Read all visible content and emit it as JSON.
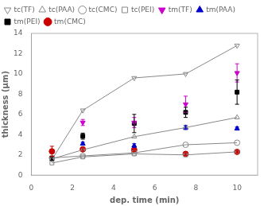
{
  "chart_data": {
    "type": "scatter",
    "title": "",
    "xlabel": "dep. time (min)",
    "ylabel": "thickness (μm)",
    "xlim": [
      0,
      11
    ],
    "ylim": [
      0,
      14
    ],
    "xticks": [
      0,
      2,
      4,
      6,
      8,
      10
    ],
    "yticks": [
      0,
      2,
      4,
      6,
      8,
      10,
      12,
      14
    ],
    "grid": false,
    "legend": "upper left",
    "series": [
      {
        "name": "tc(TF)",
        "color": "#888888",
        "marker": "triangle_down",
        "line_style": "solid",
        "x": [
          1,
          2.5,
          5,
          7.5,
          10
        ],
        "values": [
          1.55,
          6.4,
          9.6,
          10.0,
          12.8
        ]
      },
      {
        "name": "tc(PAA)",
        "color": "#888888",
        "marker": "triangle_up",
        "line_style": "solid",
        "x": [
          1,
          2.5,
          5,
          7.5,
          10
        ],
        "values": [
          1.6,
          2.5,
          3.8,
          4.7,
          5.7
        ]
      },
      {
        "name": "tc(CMC)",
        "color": "#888888",
        "marker": "circle",
        "line_style": "solid",
        "x": [
          1,
          2.5,
          5,
          7.5,
          10
        ],
        "values": [
          1.7,
          1.9,
          2.2,
          3.0,
          3.2
        ]
      },
      {
        "name": "tc(PEI)",
        "color": "#888888",
        "marker": "square",
        "line_style": "solid",
        "x": [
          1,
          2.5,
          5,
          7.5,
          10
        ],
        "values": [
          1.2,
          1.8,
          2.1,
          2.0,
          2.3
        ]
      },
      {
        "name": "tm(TF)",
        "color": "#cc00cc",
        "marker": "triangle_down",
        "line_style": "none",
        "x": [
          2.5,
          5,
          7.5,
          10
        ],
        "values": [
          5.2,
          5.2,
          7.0,
          10.1
        ],
        "yerr": [
          0.3,
          0.5,
          0.8,
          0.9
        ]
      },
      {
        "name": "tm(PAA)",
        "color": "#0000cc",
        "marker": "triangle_up",
        "line_style": "none",
        "x": [
          2.5,
          5,
          7.5,
          10
        ],
        "values": [
          3.1,
          2.9,
          4.7,
          4.6
        ],
        "yerr": [
          0.15,
          0.2,
          0.2,
          0.15
        ]
      },
      {
        "name": "tm(PEI)",
        "color": "#000000",
        "marker": "square",
        "line_style": "none",
        "x": [
          1,
          2.5,
          5,
          7.5,
          10
        ],
        "values": [
          1.65,
          3.85,
          5.1,
          6.2,
          8.2
        ],
        "yerr": [
          0.2,
          0.3,
          0.9,
          0.5,
          1.2
        ]
      },
      {
        "name": "tm(CMC)",
        "color": "#cc0000",
        "marker": "circle",
        "line_style": "none",
        "x": [
          1,
          2.5,
          5,
          7.5,
          10
        ],
        "values": [
          2.35,
          2.55,
          2.5,
          2.1,
          2.3
        ],
        "yerr": [
          0.5,
          0.2,
          0.15,
          0.15,
          0.15
        ]
      }
    ]
  }
}
